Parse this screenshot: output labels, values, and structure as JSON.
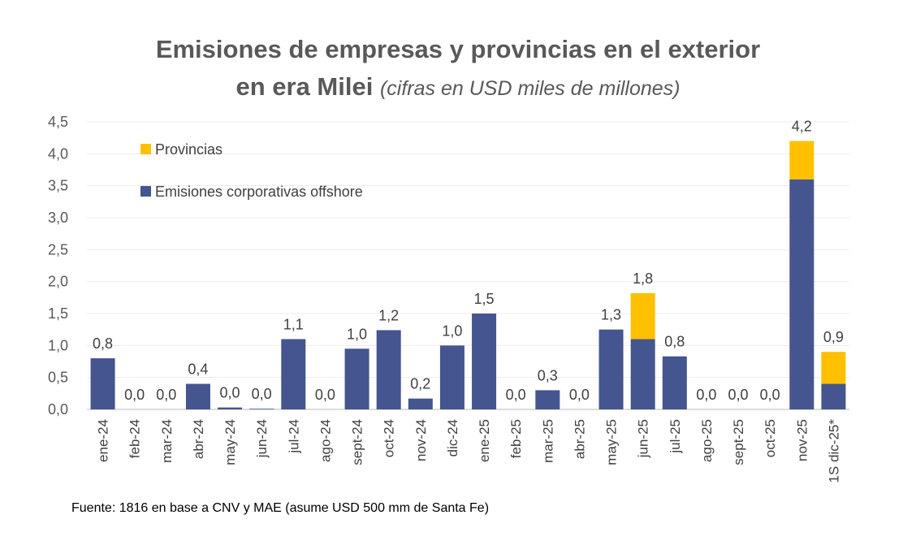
{
  "chart_data": {
    "type": "bar",
    "stacked": true,
    "title": "Emisiones de empresas y provincias en el exterior en era Milei",
    "title_line1": "Emisiones de empresas y provincias en el exterior",
    "title_line2_bold": "en era Milei",
    "subtitle": "(cifras en USD miles de millones)",
    "xlabel": "",
    "ylabel": "",
    "ylim": [
      0,
      4.5
    ],
    "yticks": [
      "0,0",
      "0,5",
      "1,0",
      "1,5",
      "2,0",
      "2,5",
      "3,0",
      "3,5",
      "4,0",
      "4,5"
    ],
    "grid": true,
    "legend_position": "top-left",
    "categories": [
      "ene-24",
      "feb-24",
      "mar-24",
      "abr-24",
      "may-24",
      "jun-24",
      "jul-24",
      "ago-24",
      "sept-24",
      "oct-24",
      "nov-24",
      "dic-24",
      "ene-25",
      "feb-25",
      "mar-25",
      "abr-25",
      "may-25",
      "jun-25",
      "jul-25",
      "ago-25",
      "sept-25",
      "oct-25",
      "nov-25",
      "1S dic-25*"
    ],
    "series": [
      {
        "name": "Emisiones corporativas offshore",
        "color": "#44558f",
        "values": [
          0.8,
          0,
          0,
          0.4,
          0.03,
          0.01,
          1.1,
          0,
          0.95,
          1.24,
          0.17,
          1.0,
          1.5,
          0,
          0.3,
          0,
          1.25,
          1.1,
          0.83,
          0,
          0,
          0,
          3.6,
          0.4
        ]
      },
      {
        "name": "Provincias",
        "color": "#ffc000",
        "values": [
          0,
          0,
          0,
          0,
          0,
          0,
          0,
          0,
          0,
          0,
          0,
          0,
          0,
          0,
          0,
          0,
          0,
          0.72,
          0,
          0,
          0,
          0,
          0.6,
          0.5
        ]
      }
    ],
    "data_labels": [
      "0,8",
      "0,0",
      "0,0",
      "0,4",
      "0,0",
      "0,0",
      "1,1",
      "0,0",
      "1,0",
      "1,2",
      "0,2",
      "1,0",
      "1,5",
      "0,0",
      "0,3",
      "0,0",
      "1,3",
      "1,8",
      "0,8",
      "0,0",
      "0,0",
      "0,0",
      "4,2",
      "0,9"
    ],
    "legend_order": [
      "Provincias",
      "Emisiones corporativas offshore"
    ]
  },
  "source": "Fuente: 1816 en base a CNV y MAE (asume USD 500 mm de Santa Fe)"
}
